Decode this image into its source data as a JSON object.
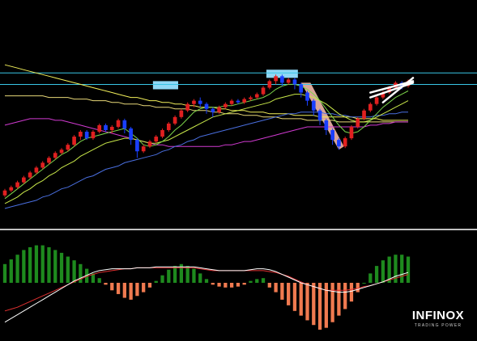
{
  "chart_data": {
    "type": "candlestick_with_macd",
    "colors": {
      "background": "#000000",
      "bull_candle": "#e02020",
      "bear_candle": "#1a3fff",
      "ma_fast": "#7cd44a",
      "ma_mid": "#c9e84a",
      "ma_blue": "#4a6fe0",
      "ma_magenta": "#d13ad1",
      "ma_yellow": "#f2ef5a",
      "ma_slow": "#e8d878",
      "level_line": "#39c6e6",
      "zone_highlight": "#8fd8f5",
      "down_channel": "#f2b8a8",
      "trendlines": "#ffffff",
      "separator": "#ffffff",
      "hist_positive": "#1e8a1e",
      "hist_negative": "#f07a50",
      "macd_line": "#ffffff",
      "signal_line": "#e03030"
    },
    "price_panel": {
      "ylim": [
        0,
        100
      ],
      "candles": [
        [
          10,
          13,
          9,
          14
        ],
        [
          13,
          15,
          12,
          16
        ],
        [
          15,
          18,
          14,
          19
        ],
        [
          18,
          21,
          17,
          22
        ],
        [
          21,
          24,
          20,
          25
        ],
        [
          24,
          27,
          23,
          28
        ],
        [
          27,
          30,
          26,
          31
        ],
        [
          30,
          33,
          29,
          34
        ],
        [
          33,
          36,
          32,
          37
        ],
        [
          36,
          38,
          35,
          39
        ],
        [
          38,
          41,
          37,
          42
        ],
        [
          41,
          46,
          40,
          47
        ],
        [
          46,
          49,
          44,
          50
        ],
        [
          49,
          45,
          44,
          50
        ],
        [
          45,
          49,
          44,
          50
        ],
        [
          49,
          53,
          48,
          54
        ],
        [
          53,
          50,
          49,
          54
        ],
        [
          50,
          52,
          48,
          53
        ],
        [
          52,
          56,
          51,
          57
        ],
        [
          56,
          51,
          48,
          57
        ],
        [
          51,
          44,
          41,
          52
        ],
        [
          44,
          37,
          33,
          45
        ],
        [
          37,
          40,
          36,
          41
        ],
        [
          40,
          43,
          39,
          44
        ],
        [
          43,
          46,
          42,
          47
        ],
        [
          46,
          50,
          45,
          51
        ],
        [
          50,
          54,
          49,
          55
        ],
        [
          54,
          58,
          53,
          59
        ],
        [
          58,
          62,
          57,
          63
        ],
        [
          62,
          66,
          61,
          67
        ],
        [
          66,
          68,
          64,
          69
        ],
        [
          68,
          66,
          64,
          70
        ],
        [
          66,
          63,
          60,
          67
        ],
        [
          63,
          61,
          58,
          64
        ],
        [
          61,
          64,
          60,
          65
        ],
        [
          64,
          66,
          63,
          67
        ],
        [
          66,
          68,
          65,
          69
        ],
        [
          68,
          67,
          66,
          69
        ],
        [
          67,
          69,
          66,
          70
        ],
        [
          69,
          70,
          68,
          71
        ],
        [
          70,
          72,
          69,
          73
        ],
        [
          72,
          76,
          71,
          77
        ],
        [
          76,
          80,
          75,
          81
        ],
        [
          80,
          83,
          78,
          84
        ],
        [
          83,
          79,
          77,
          84
        ],
        [
          79,
          81,
          78,
          82
        ],
        [
          81,
          78,
          75,
          82
        ],
        [
          78,
          73,
          70,
          79
        ],
        [
          73,
          68,
          65,
          74
        ],
        [
          68,
          62,
          59,
          69
        ],
        [
          62,
          56,
          53,
          63
        ],
        [
          56,
          50,
          47,
          57
        ],
        [
          50,
          44,
          41,
          51
        ],
        [
          44,
          40,
          38,
          45
        ],
        [
          40,
          45,
          39,
          46
        ],
        [
          45,
          52,
          44,
          53
        ],
        [
          52,
          57,
          51,
          58
        ],
        [
          57,
          62,
          56,
          63
        ],
        [
          62,
          66,
          61,
          67
        ],
        [
          66,
          70,
          65,
          71
        ],
        [
          70,
          73,
          69,
          74
        ],
        [
          73,
          76,
          72,
          77
        ],
        [
          76,
          79,
          75,
          80
        ],
        [
          79,
          77,
          75,
          80
        ],
        [
          77,
          80,
          76,
          81
        ]
      ],
      "ma_fast": [
        8,
        11,
        14,
        17,
        20,
        23,
        26,
        29,
        32,
        35,
        37,
        40,
        43,
        45,
        46,
        47,
        48,
        49,
        50,
        51,
        48,
        45,
        41,
        40,
        41,
        43,
        46,
        50,
        53,
        57,
        61,
        63,
        64,
        64,
        64,
        65,
        65,
        66,
        67,
        68,
        69,
        70,
        72,
        75,
        77,
        78,
        78,
        77,
        75,
        72,
        68,
        63,
        58,
        53,
        49,
        48,
        49,
        52,
        56,
        60,
        64,
        67,
        70,
        72,
        74
      ],
      "ma_mid": [
        5,
        7,
        9,
        12,
        14,
        17,
        19,
        22,
        24,
        27,
        29,
        31,
        34,
        36,
        38,
        40,
        42,
        43,
        44,
        45,
        45,
        44,
        43,
        42,
        42,
        43,
        44,
        46,
        48,
        50,
        52,
        54,
        56,
        58,
        59,
        60,
        61,
        62,
        63,
        64,
        65,
        66,
        67,
        69,
        70,
        71,
        72,
        72,
        71,
        70,
        68,
        66,
        63,
        60,
        58,
        56,
        55,
        55,
        56,
        58,
        60,
        62,
        64,
        66,
        68
      ],
      "ma_blue": [
        2,
        3,
        4,
        5,
        6,
        7,
        9,
        10,
        12,
        14,
        15,
        17,
        19,
        21,
        22,
        24,
        26,
        27,
        28,
        30,
        31,
        32,
        33,
        34,
        35,
        37,
        38,
        40,
        41,
        43,
        44,
        46,
        47,
        48,
        49,
        50,
        51,
        52,
        53,
        54,
        55,
        56,
        57,
        58,
        59,
        60,
        60,
        61,
        61,
        61,
        61,
        60,
        60,
        59,
        59,
        58,
        58,
        58,
        58,
        59,
        59,
        60,
        60,
        61,
        61
      ],
      "ma_magenta": [
        53,
        54,
        55,
        56,
        57,
        57,
        57,
        57,
        56,
        56,
        55,
        54,
        53,
        52,
        51,
        50,
        49,
        48,
        47,
        46,
        45,
        44,
        43,
        42,
        41,
        41,
        40,
        40,
        40,
        40,
        40,
        40,
        40,
        40,
        40,
        41,
        41,
        42,
        43,
        43,
        44,
        45,
        46,
        47,
        48,
        49,
        50,
        51,
        52,
        52,
        52,
        52,
        52,
        52,
        52,
        52,
        52,
        52,
        53,
        53,
        54,
        54,
        55,
        55,
        55
      ],
      "ma_yellow": [
        90,
        89,
        88,
        87,
        86,
        85,
        84,
        83,
        82,
        81,
        80,
        79,
        78,
        77,
        76,
        75,
        74,
        73,
        72,
        71,
        70,
        70,
        69,
        68,
        68,
        67,
        67,
        66,
        66,
        65,
        65,
        64,
        64,
        64,
        63,
        63,
        62,
        62,
        62,
        61,
        61,
        61,
        60,
        60,
        60,
        60,
        59,
        59,
        59,
        59,
        58,
        58,
        58,
        58,
        58,
        58,
        57,
        57,
        57,
        57,
        56,
        56,
        56,
        56,
        56
      ],
      "ma_slow": [
        71,
        71,
        71,
        71,
        71,
        71,
        71,
        70,
        70,
        70,
        70,
        69,
        69,
        69,
        68,
        68,
        68,
        67,
        67,
        66,
        66,
        66,
        65,
        65,
        64,
        64,
        64,
        63,
        63,
        63,
        62,
        62,
        62,
        61,
        61,
        60,
        60,
        60,
        59,
        59,
        59,
        58,
        58,
        58,
        57,
        57,
        57,
        57,
        56,
        56,
        56,
        56,
        56,
        55,
        55,
        55,
        55,
        55,
        55,
        55,
        55,
        55,
        55,
        55,
        55
      ],
      "horizontal_lines": [
        78,
        85
      ],
      "zones": [
        {
          "start": 24,
          "end": 27,
          "low": 75,
          "high": 80
        },
        {
          "start": 42,
          "end": 46,
          "low": 82,
          "high": 87
        }
      ],
      "down_channel": {
        "start": 47,
        "end": 53
      },
      "trendlines": [
        [
          58,
          70,
          64,
          79
        ],
        [
          58,
          73,
          64,
          80
        ],
        [
          60,
          67,
          64,
          82
        ]
      ]
    },
    "macd_panel": {
      "ylim": [
        -50,
        50
      ],
      "histogram": [
        20,
        25,
        30,
        35,
        38,
        40,
        40,
        38,
        35,
        32,
        28,
        24,
        20,
        15,
        10,
        5,
        -2,
        -8,
        -12,
        -16,
        -18,
        -14,
        -10,
        -5,
        2,
        8,
        14,
        18,
        20,
        18,
        15,
        10,
        4,
        -2,
        -4,
        -5,
        -5,
        -4,
        -2,
        2,
        4,
        5,
        -5,
        -10,
        -18,
        -24,
        -30,
        -35,
        -40,
        -45,
        -50,
        -48,
        -42,
        -35,
        -28,
        -20,
        -10,
        0,
        10,
        18,
        24,
        28,
        30,
        30,
        28
      ],
      "macd": [
        -42,
        -38,
        -34,
        -30,
        -26,
        -22,
        -18,
        -14,
        -10,
        -6,
        -2,
        2,
        5,
        8,
        11,
        13,
        14,
        15,
        15,
        15,
        15,
        16,
        16,
        16,
        17,
        17,
        17,
        17,
        17,
        17,
        17,
        16,
        15,
        14,
        13,
        13,
        13,
        13,
        13,
        14,
        15,
        15,
        14,
        12,
        9,
        6,
        3,
        0,
        -2,
        -4,
        -6,
        -8,
        -9,
        -10,
        -10,
        -9,
        -7,
        -5,
        -3,
        -1,
        1,
        4,
        7,
        9,
        11
      ],
      "signal": [
        -30,
        -28,
        -26,
        -23,
        -20,
        -17,
        -14,
        -11,
        -8,
        -5,
        -2,
        1,
        4,
        7,
        9,
        11,
        12,
        13,
        14,
        15,
        15,
        16,
        16,
        16,
        16,
        16,
        16,
        16,
        16,
        16,
        16,
        15,
        14,
        13,
        13,
        13,
        13,
        13,
        13,
        13,
        13,
        13,
        12,
        11,
        9,
        7,
        4,
        1,
        -2,
        -4,
        -6,
        -8,
        -8,
        -8,
        -8,
        -7,
        -6,
        -4,
        -3,
        -1,
        1,
        3,
        5,
        7,
        9
      ]
    }
  },
  "brand": {
    "name": "INFINOX",
    "tagline": "TRADING POWER"
  }
}
